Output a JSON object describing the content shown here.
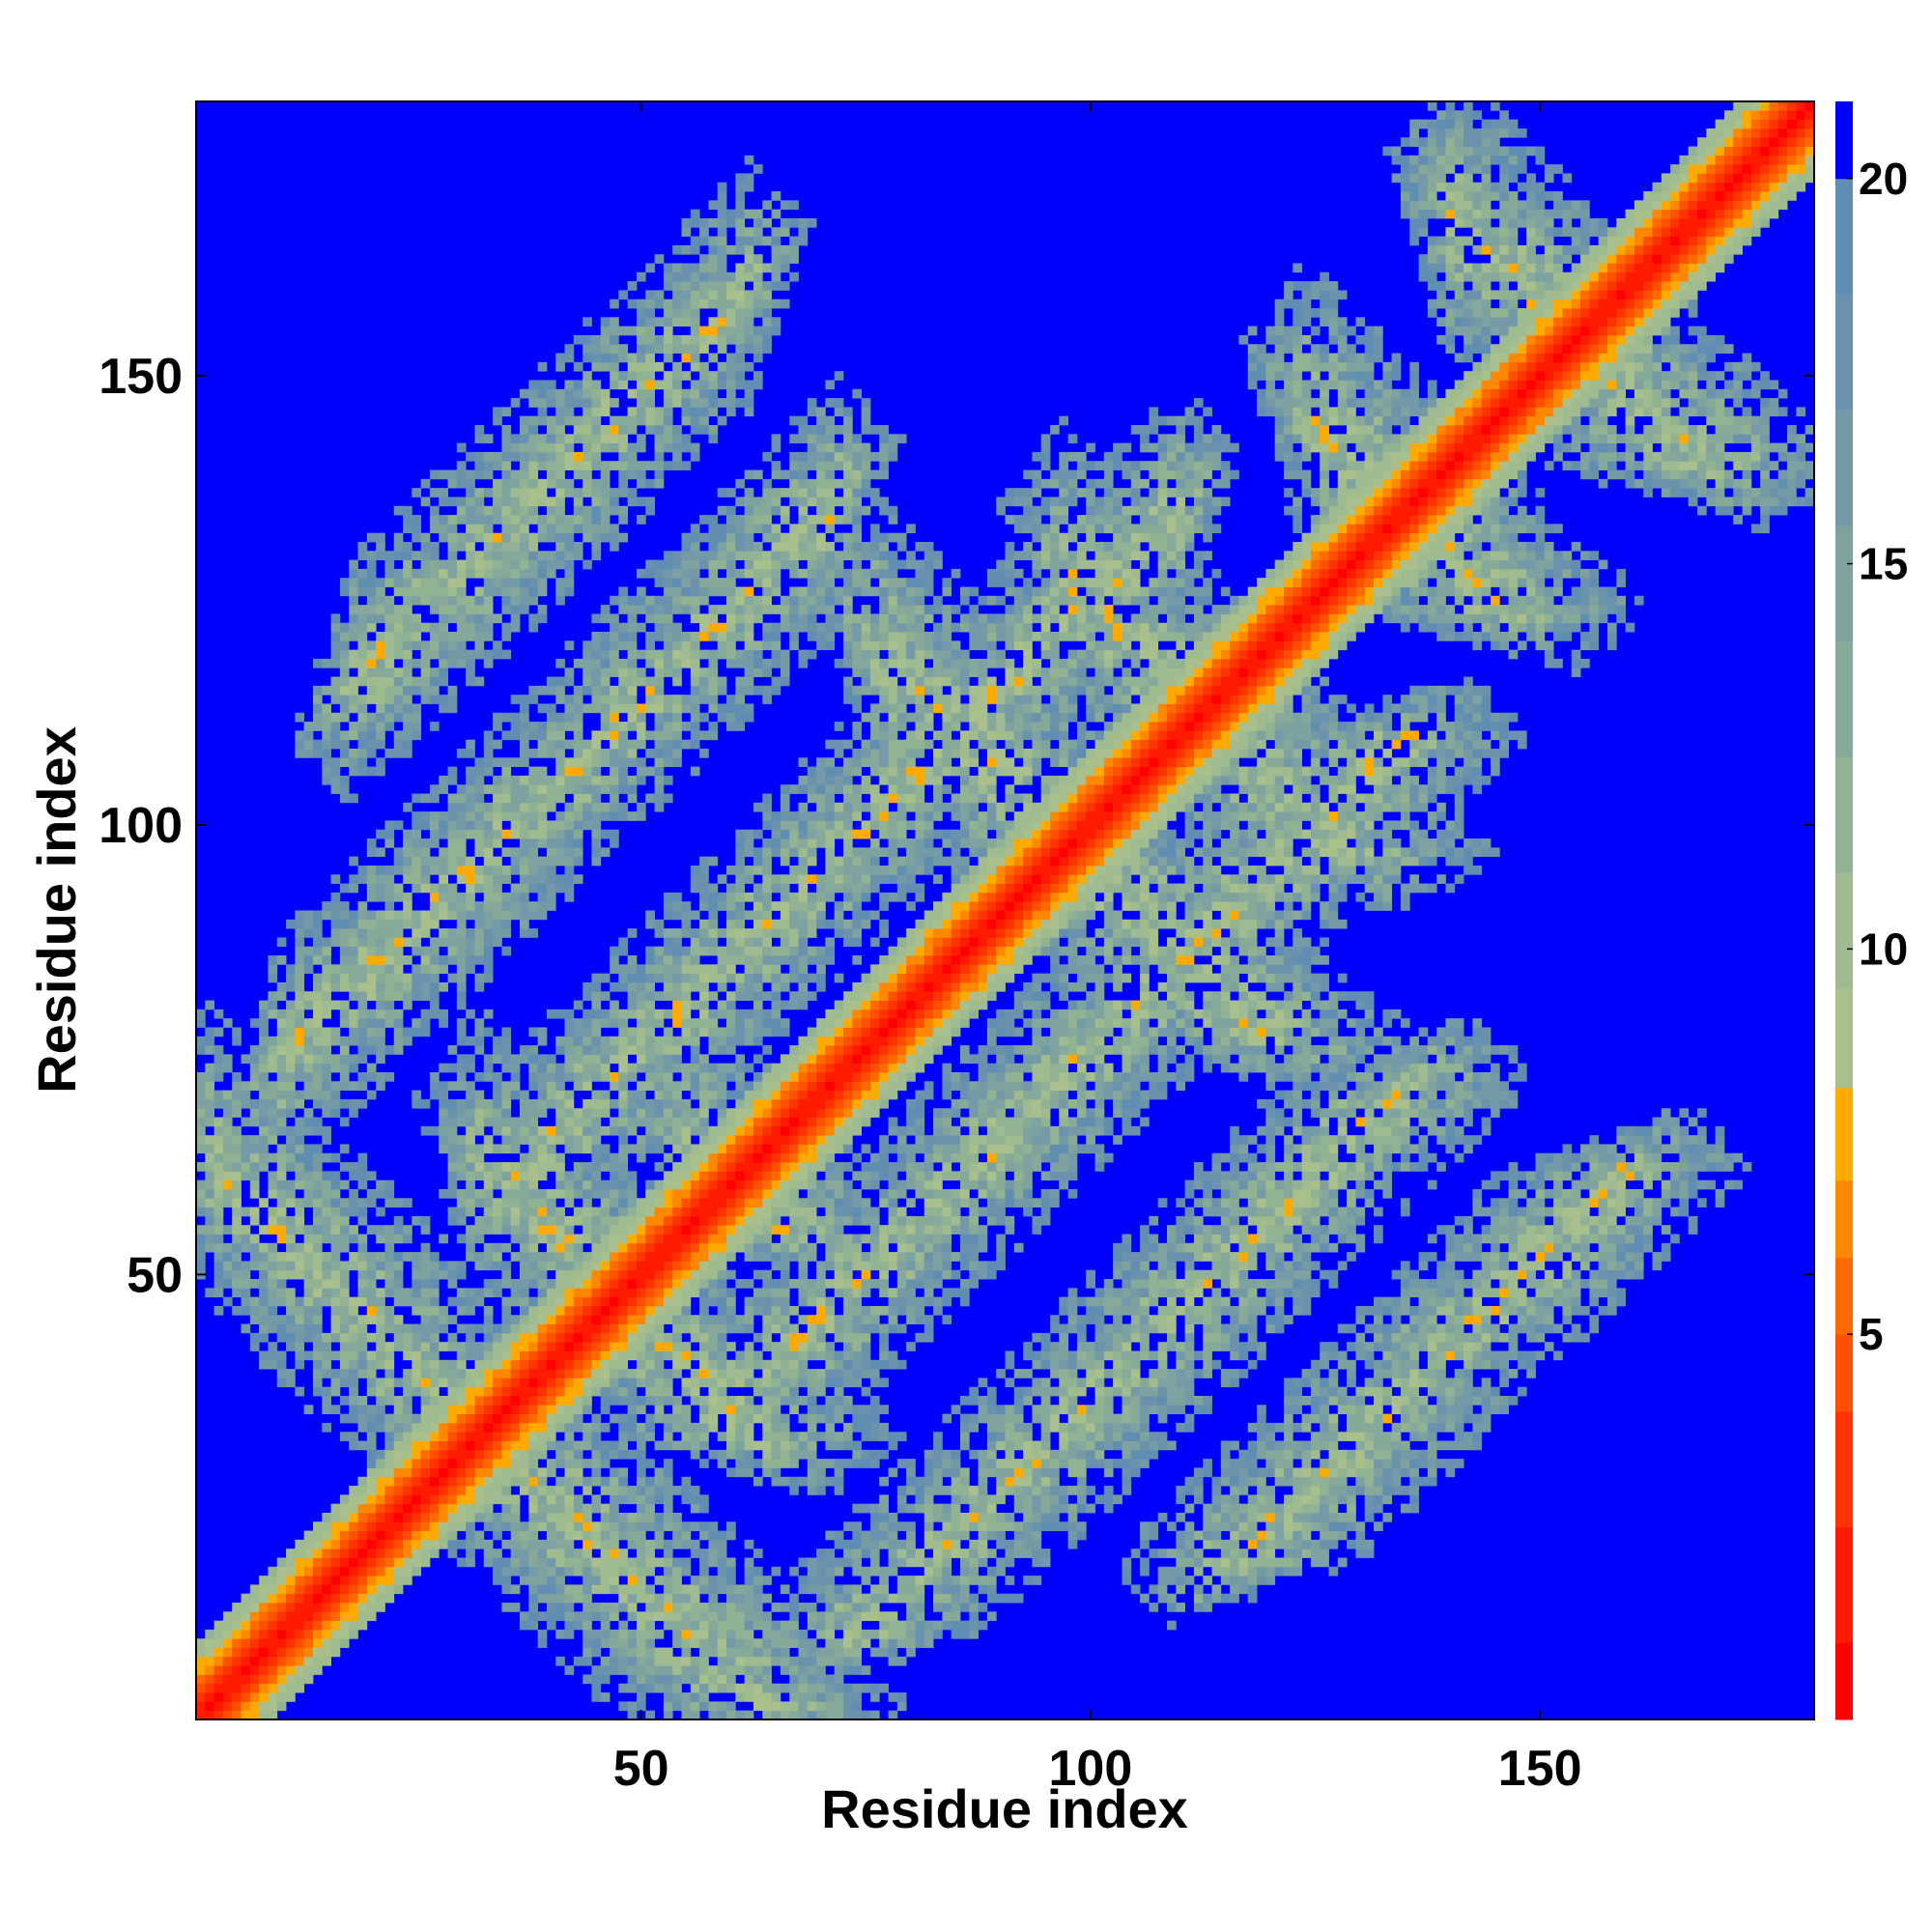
{
  "chart_data": {
    "type": "heatmap",
    "title": "",
    "xlabel": "Residue index",
    "ylabel": "Residue index",
    "n_residues": 180,
    "xlim": [
      1,
      180
    ],
    "ylim": [
      1,
      180
    ],
    "x_ticks": [
      {
        "value": 50,
        "label": "50"
      },
      {
        "value": 100,
        "label": "100"
      },
      {
        "value": 150,
        "label": "150"
      }
    ],
    "y_ticks": [
      {
        "value": 50,
        "label": "50"
      },
      {
        "value": 100,
        "label": "100"
      },
      {
        "value": 150,
        "label": "150"
      }
    ],
    "colorbar": {
      "range": [
        0,
        21
      ],
      "ticks": [
        {
          "value": 5,
          "label": "5"
        },
        {
          "value": 10,
          "label": "10"
        },
        {
          "value": 15,
          "label": "15"
        },
        {
          "value": 20,
          "label": "20"
        }
      ],
      "levels": [
        {
          "from": 0,
          "to": 1,
          "color": "#ff0000"
        },
        {
          "from": 1,
          "to": 2.5,
          "color": "#ff1a00"
        },
        {
          "from": 2.5,
          "to": 4,
          "color": "#ff3300"
        },
        {
          "from": 4,
          "to": 5,
          "color": "#ff5000"
        },
        {
          "from": 5,
          "to": 6,
          "color": "#ff6a00"
        },
        {
          "from": 6,
          "to": 7,
          "color": "#ff8800"
        },
        {
          "from": 7,
          "to": 8.2,
          "color": "#ffaa00"
        },
        {
          "from": 8.2,
          "to": 9.5,
          "color": "#a9c08c"
        },
        {
          "from": 9.5,
          "to": 11,
          "color": "#9fbb8f"
        },
        {
          "from": 11,
          "to": 12.5,
          "color": "#92b294"
        },
        {
          "from": 12.5,
          "to": 14,
          "color": "#86a99a"
        },
        {
          "from": 14,
          "to": 15.5,
          "color": "#7ea2a0"
        },
        {
          "from": 15.5,
          "to": 17,
          "color": "#739aa6"
        },
        {
          "from": 17,
          "to": 18.5,
          "color": "#6a92ac"
        },
        {
          "from": 18.5,
          "to": 20,
          "color": "#608db2"
        },
        {
          "from": 20,
          "to": 21,
          "color": "#0000ff"
        }
      ]
    },
    "structure": {
      "diagonal_band_width": 8,
      "contact_bands": [
        {
          "orientation": "anti",
          "sum": 65,
          "t_range": [
            2,
            33
          ]
        },
        {
          "orientation": "anti",
          "sum": 95,
          "t_range": [
            32,
            63
          ]
        },
        {
          "orientation": "anti",
          "sum": 120,
          "t_range": [
            55,
            92
          ]
        },
        {
          "orientation": "anti",
          "sum": 196,
          "t_range": [
            76,
            118
          ]
        },
        {
          "orientation": "anti",
          "sum": 225,
          "t_range": [
            97,
            138
          ]
        },
        {
          "orientation": "anti",
          "sum": 270,
          "t_range": [
            124,
            176
          ]
        },
        {
          "orientation": "anti",
          "sum": 308,
          "t_range": [
            140,
            180
          ]
        },
        {
          "orientation": "parallel",
          "offset": 25,
          "t_range": [
            38,
            110
          ]
        },
        {
          "orientation": "parallel",
          "offset": 64,
          "t_range": [
            10,
            72
          ]
        },
        {
          "orientation": "parallel",
          "offset": 98,
          "t_range": [
            18,
            62
          ]
        }
      ]
    }
  }
}
